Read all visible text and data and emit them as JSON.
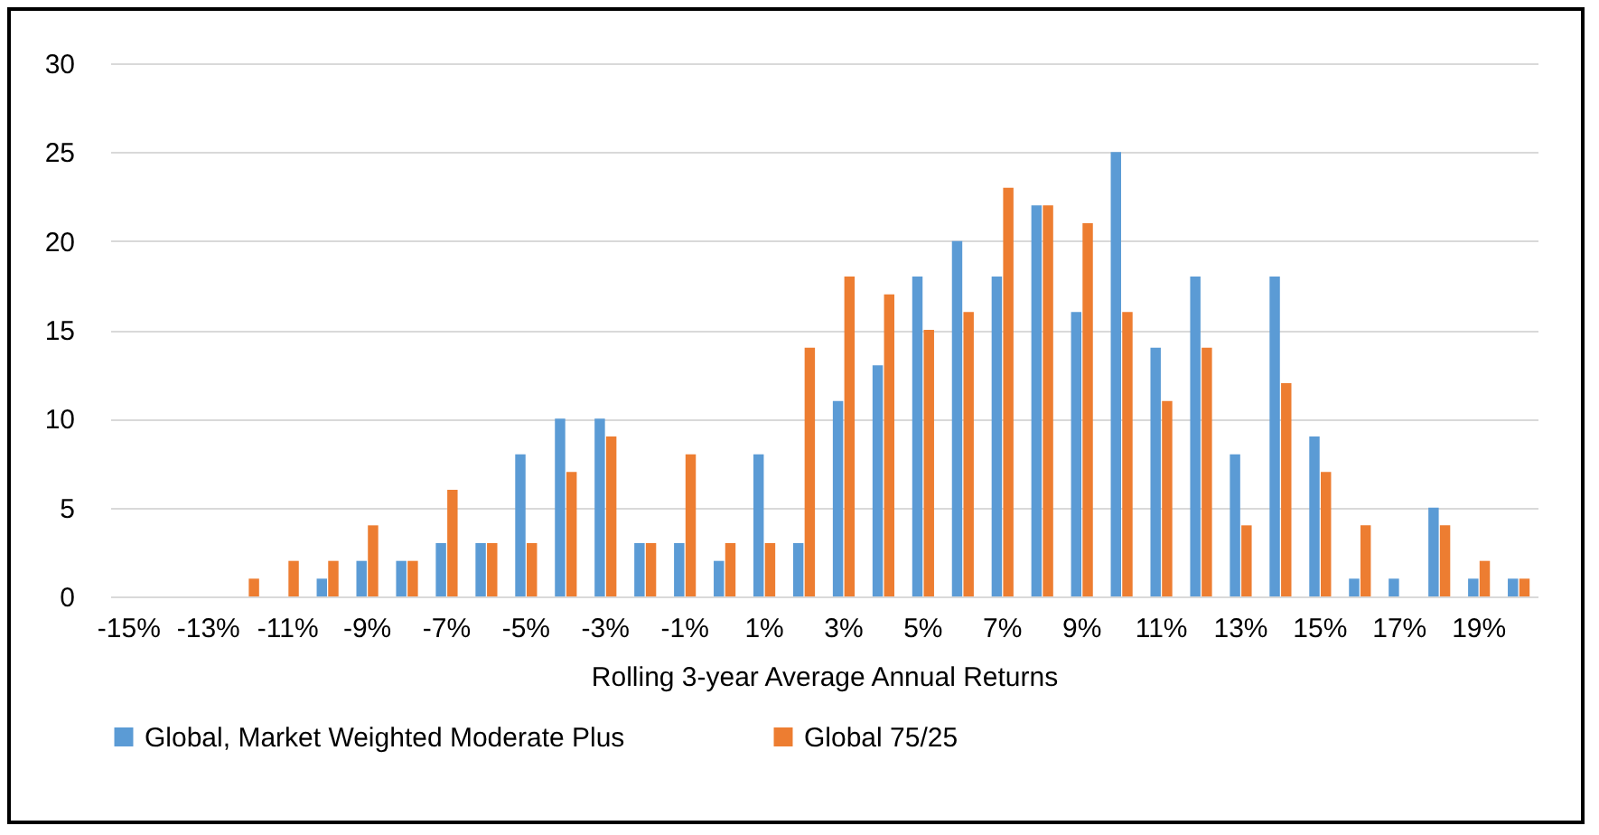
{
  "chart_data": {
    "type": "bar",
    "xlabel": "Rolling 3-year Average Annual Returns",
    "categories": [
      "-15%",
      null,
      "-13%",
      null,
      "-11%",
      null,
      "-9%",
      null,
      "-7%",
      null,
      "-5%",
      null,
      "-3%",
      null,
      "-1%",
      null,
      "1%",
      null,
      "3%",
      null,
      "5%",
      null,
      "7%",
      null,
      "9%",
      null,
      "11%",
      null,
      "13%",
      null,
      "15%",
      null,
      "17%",
      null,
      "19%",
      null
    ],
    "series": [
      {
        "name": "Global, Market Weighted Moderate Plus",
        "color": "#5b9bd5",
        "values": [
          0,
          0,
          0,
          0,
          0,
          1,
          2,
          2,
          3,
          3,
          8,
          10,
          10,
          3,
          3,
          2,
          8,
          3,
          11,
          13,
          18,
          20,
          18,
          22,
          16,
          25,
          14,
          18,
          8,
          18,
          9,
          1,
          1,
          5,
          1,
          1
        ]
      },
      {
        "name": "Global 75/25",
        "color": "#ed7d31",
        "values": [
          0,
          0,
          0,
          1,
          2,
          2,
          4,
          2,
          6,
          3,
          3,
          7,
          9,
          3,
          8,
          3,
          3,
          14,
          18,
          17,
          15,
          16,
          23,
          22,
          21,
          16,
          11,
          14,
          4,
          12,
          7,
          4,
          0,
          4,
          2,
          1
        ]
      }
    ],
    "ylim": [
      0,
      30
    ],
    "yticks": [
      0,
      5,
      10,
      15,
      20,
      25,
      30
    ],
    "grid": "y",
    "legend": "bottom"
  }
}
